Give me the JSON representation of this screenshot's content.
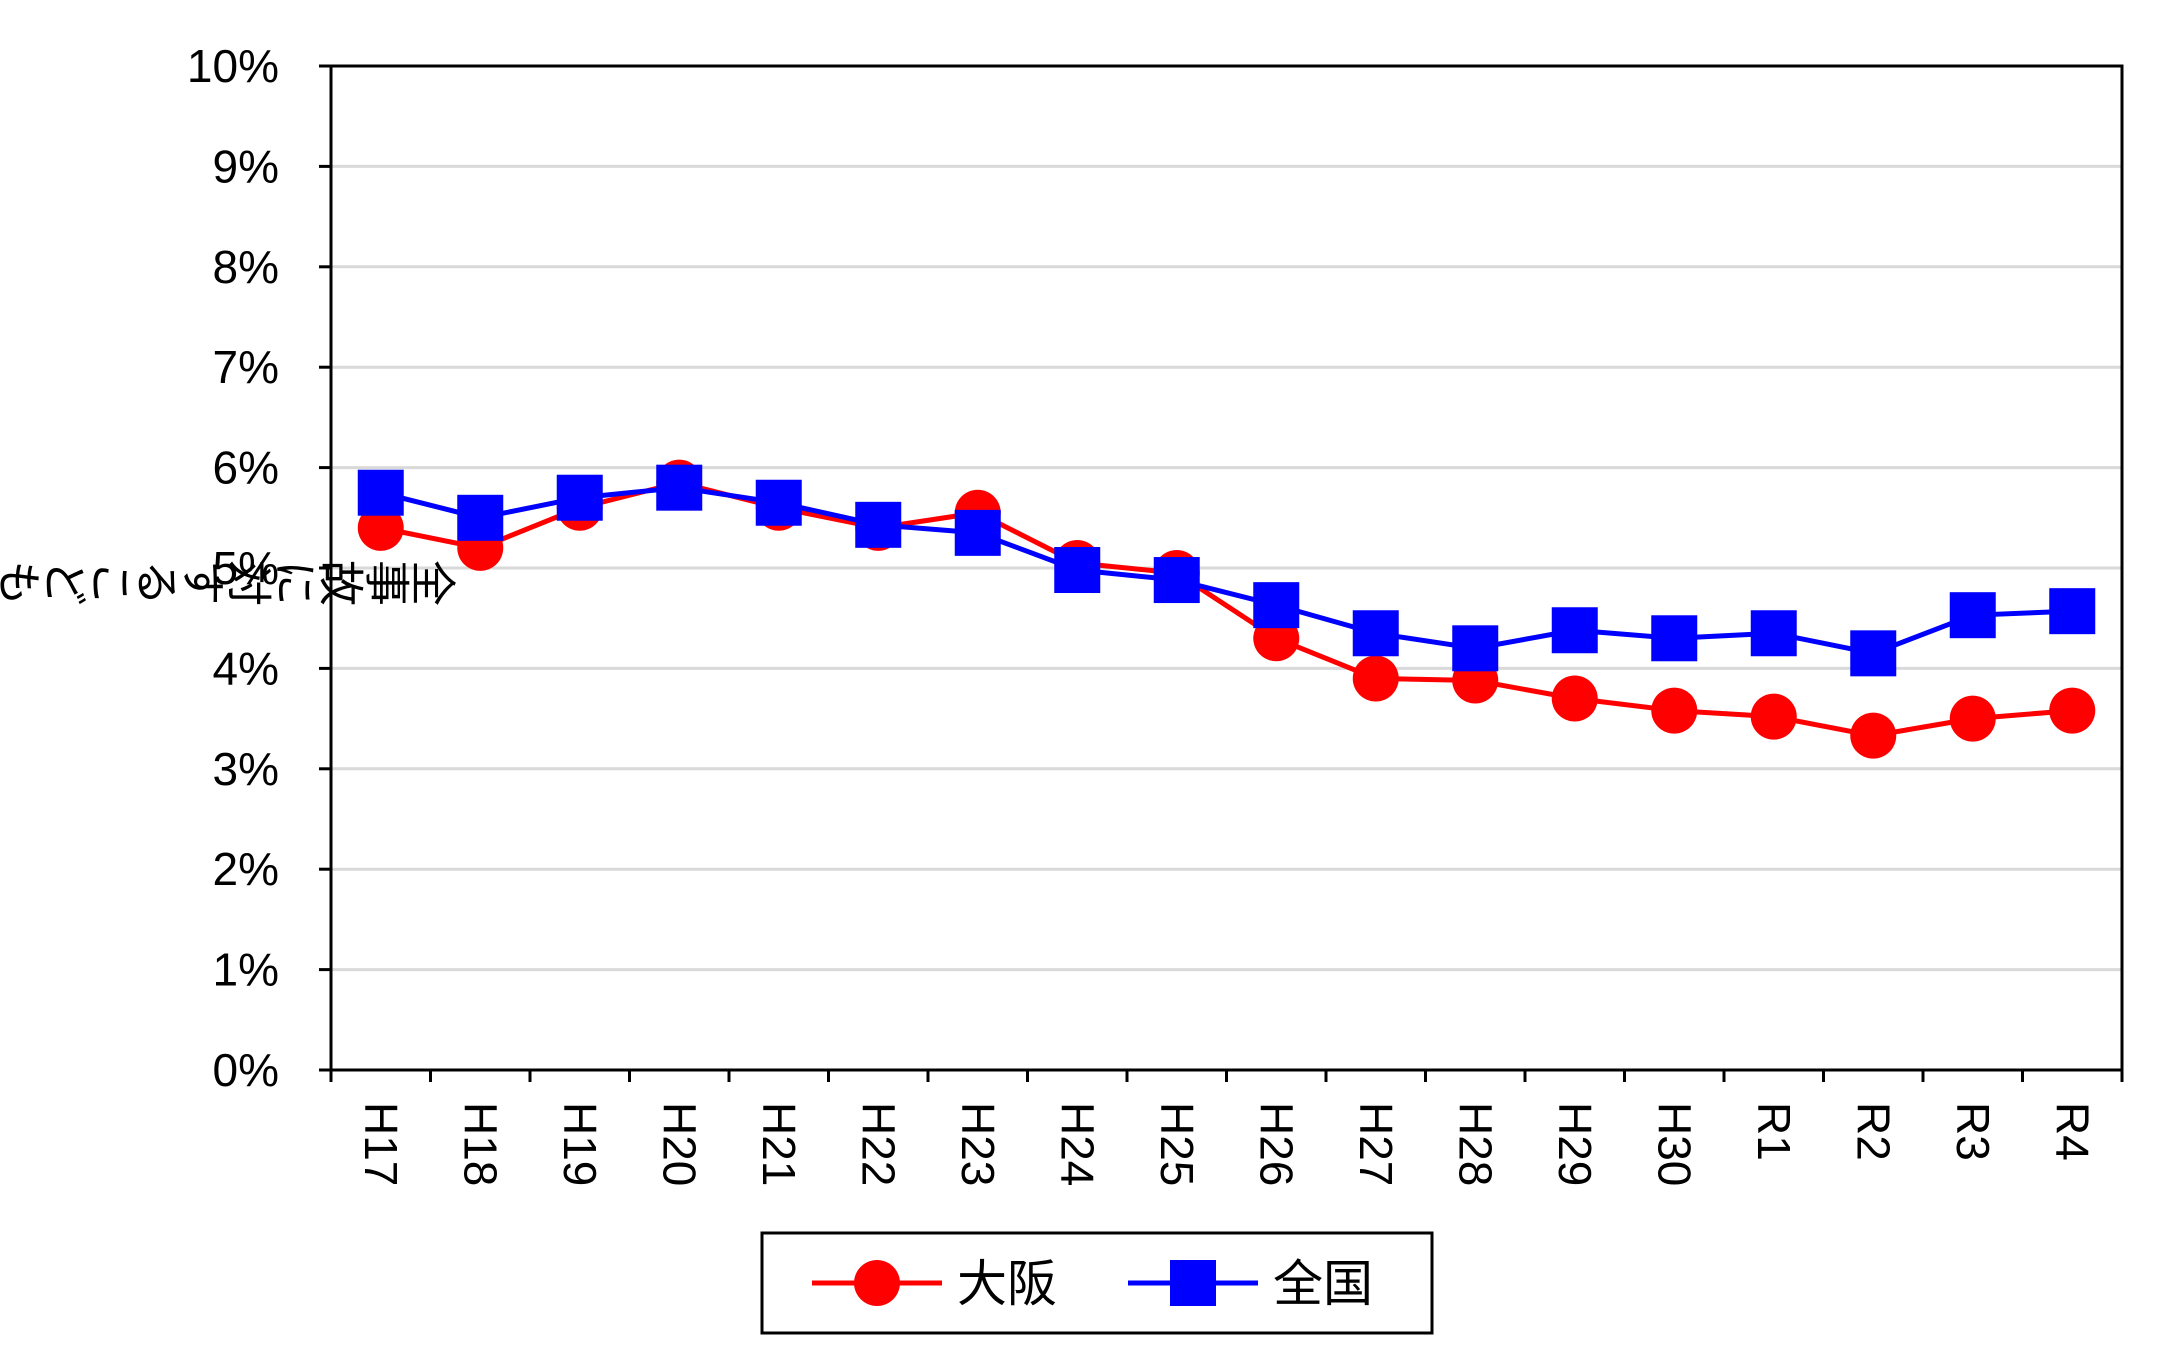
{
  "chart_data": {
    "type": "line",
    "title": "",
    "xlabel": "",
    "ylabel": "全事故に対するこども事故割合",
    "categories": [
      "H17",
      "H18",
      "H19",
      "H20",
      "H21",
      "H22",
      "H23",
      "H24",
      "H25",
      "H26",
      "H27",
      "H28",
      "H29",
      "H30",
      "R1",
      "R2",
      "R3",
      "R4"
    ],
    "ylim": [
      0,
      10
    ],
    "yticks": [
      0,
      1,
      2,
      3,
      4,
      5,
      6,
      7,
      8,
      9,
      10
    ],
    "ytick_labels": [
      "0%",
      "1%",
      "2%",
      "3%",
      "4%",
      "5%",
      "6%",
      "7%",
      "8%",
      "9%",
      "10%"
    ],
    "grid": true,
    "legend_position": "bottom",
    "series": [
      {
        "name": "大阪",
        "color": "#ff0000",
        "marker": "circle",
        "values": [
          5.4,
          5.2,
          5.6,
          5.85,
          5.6,
          5.4,
          5.55,
          5.05,
          4.95,
          4.3,
          3.9,
          3.88,
          3.7,
          3.58,
          3.52,
          3.33,
          3.5,
          3.58
        ]
      },
      {
        "name": "全国",
        "color": "#0000ff",
        "marker": "square",
        "values": [
          5.75,
          5.5,
          5.7,
          5.8,
          5.65,
          5.43,
          5.35,
          4.98,
          4.88,
          4.63,
          4.35,
          4.2,
          4.38,
          4.3,
          4.35,
          4.15,
          4.53,
          4.57
        ]
      }
    ]
  }
}
